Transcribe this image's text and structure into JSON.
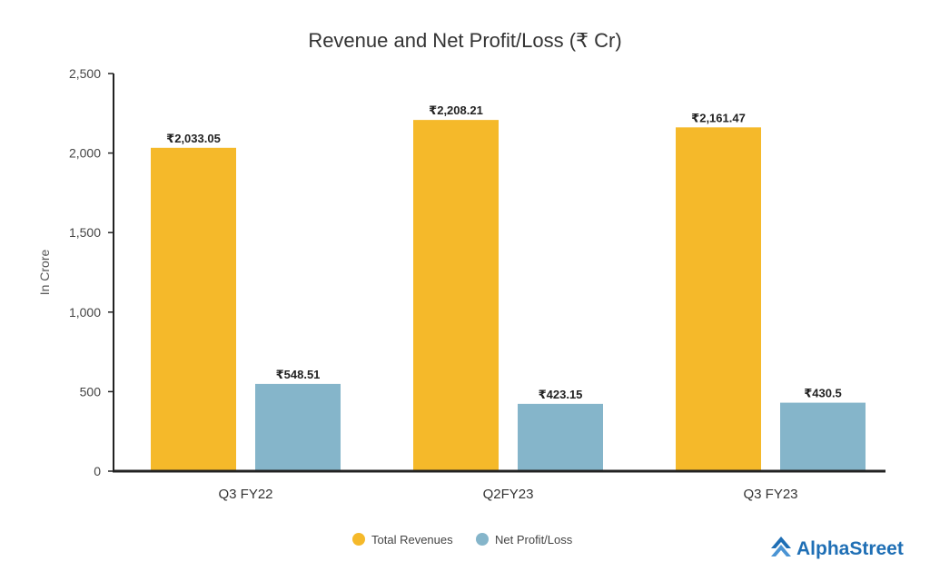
{
  "chart_data": {
    "type": "bar",
    "title": "Revenue and Net Profit/Loss (₹ Cr)",
    "xlabel": "",
    "ylabel": "In Crore",
    "categories": [
      "Q3 FY22",
      "Q2FY23",
      "Q3 FY23"
    ],
    "ylim": [
      0,
      2500
    ],
    "yticks": [
      0,
      500,
      1000,
      1500,
      2000,
      2500
    ],
    "ytick_labels": [
      "0",
      "500",
      "1,000",
      "1,500",
      "2,000",
      "2,500"
    ],
    "series": [
      {
        "name": "Total Revenues",
        "color": "#F5B92A",
        "values": [
          2033.05,
          2208.21,
          2161.47
        ],
        "labels": [
          "₹2,033.05",
          "₹2,208.21",
          "₹2,161.47"
        ]
      },
      {
        "name": "Net Profit/Loss",
        "color": "#85B5CA",
        "values": [
          548.51,
          423.15,
          430.5
        ],
        "labels": [
          "₹548.51",
          "₹423.15",
          "₹430.5"
        ]
      }
    ],
    "legend_position": "bottom-center",
    "grid": false
  },
  "brand": {
    "name": "AlphaStreet",
    "color": "#1F6FB5",
    "icon": "alphastreet-logo-icon"
  }
}
